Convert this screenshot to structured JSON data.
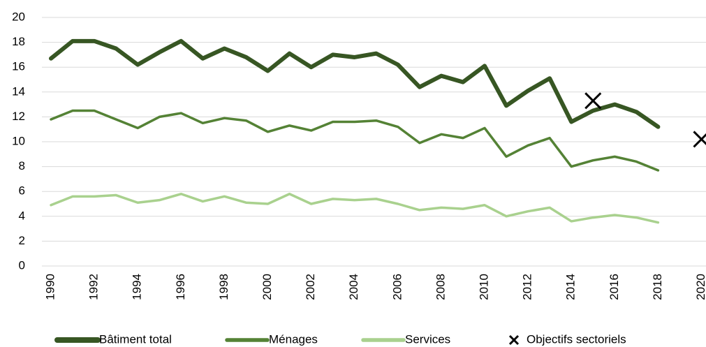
{
  "chart_data": {
    "type": "line",
    "x": [
      1990,
      1991,
      1992,
      1993,
      1994,
      1995,
      1996,
      1997,
      1998,
      1999,
      2000,
      2001,
      2002,
      2003,
      2004,
      2005,
      2006,
      2007,
      2008,
      2009,
      2010,
      2011,
      2012,
      2013,
      2014,
      2015,
      2016,
      2017,
      2018
    ],
    "xlim": [
      1990,
      2020
    ],
    "xticks": [
      1990,
      1992,
      1994,
      1996,
      1998,
      2000,
      2002,
      2004,
      2006,
      2008,
      2010,
      2012,
      2014,
      2016,
      2018,
      2020
    ],
    "ylim": [
      0,
      20
    ],
    "yticks": [
      0,
      2,
      4,
      6,
      8,
      10,
      12,
      14,
      16,
      18,
      20
    ],
    "grid": true,
    "legend": "bottom",
    "series": [
      {
        "name": "Bâtiment total",
        "color": "#375623",
        "width": 6,
        "values": [
          16.7,
          18.1,
          18.1,
          17.5,
          16.2,
          17.2,
          18.1,
          16.7,
          17.5,
          16.8,
          15.7,
          17.1,
          16.0,
          17.0,
          16.8,
          17.1,
          16.2,
          14.4,
          15.3,
          14.8,
          16.1,
          12.9,
          14.1,
          15.1,
          11.6,
          12.5,
          13.0,
          12.4,
          11.2
        ]
      },
      {
        "name": "Ménages",
        "color": "#548235",
        "width": 3.5,
        "values": [
          11.8,
          12.5,
          12.5,
          11.8,
          11.1,
          12.0,
          12.3,
          11.5,
          11.9,
          11.7,
          10.8,
          11.3,
          10.9,
          11.6,
          11.6,
          11.7,
          11.2,
          9.9,
          10.6,
          10.3,
          11.1,
          8.8,
          9.7,
          10.3,
          8.0,
          8.5,
          8.8,
          8.4,
          7.7
        ]
      },
      {
        "name": "Services",
        "color": "#a9d18e",
        "width": 3.5,
        "values": [
          4.9,
          5.6,
          5.6,
          5.7,
          5.1,
          5.3,
          5.8,
          5.2,
          5.6,
          5.1,
          5.0,
          5.8,
          5.0,
          5.4,
          5.3,
          5.4,
          5.0,
          4.5,
          4.7,
          4.6,
          4.9,
          4.0,
          4.4,
          4.7,
          3.6,
          3.9,
          4.1,
          3.9,
          3.5
        ]
      },
      {
        "name": "Objectifs sectoriels",
        "color": "#000000",
        "marker": "x",
        "x": [
          2015,
          2020
        ],
        "values": [
          13.3,
          10.2
        ]
      }
    ]
  }
}
